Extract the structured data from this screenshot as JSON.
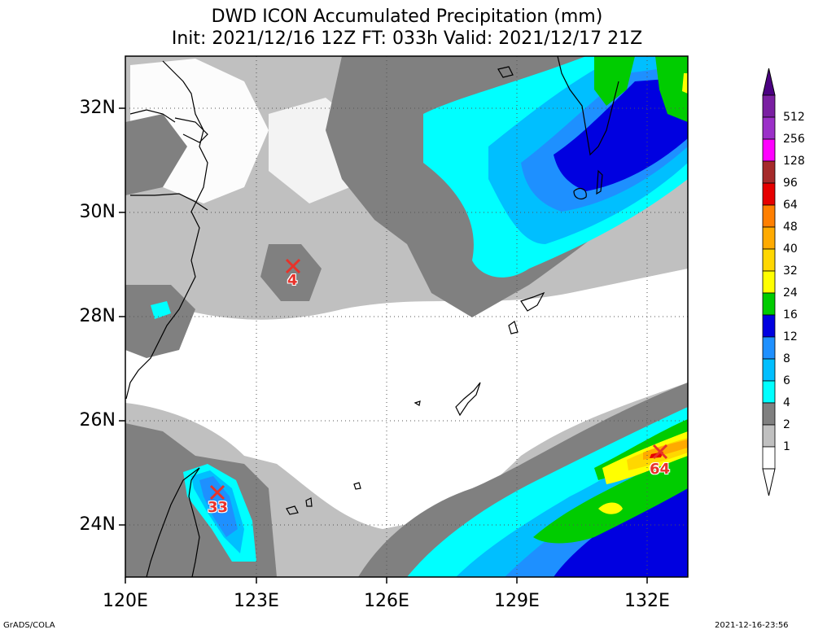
{
  "title": {
    "line1": "DWD ICON Accumulated Precipitation (mm)",
    "line2": "Init: 2021/12/16 12Z  FT: 033h  Valid: 2021/12/17 21Z"
  },
  "axes": {
    "lat_labels": [
      "32N",
      "30N",
      "28N",
      "26N",
      "24N"
    ],
    "lon_labels": [
      "120E",
      "123E",
      "126E",
      "129E",
      "132E"
    ]
  },
  "colorbar": {
    "labels": [
      "512",
      "256",
      "128",
      "96",
      "64",
      "48",
      "40",
      "32",
      "24",
      "16",
      "12",
      "8",
      "6",
      "4",
      "2",
      "1"
    ],
    "colors": [
      "#7a1fa2",
      "#9b30c8",
      "#ff00ff",
      "#a52a2a",
      "#e60000",
      "#ff7f00",
      "#ffaa00",
      "#ffd700",
      "#ffff00",
      "#00cc00",
      "#0000e0",
      "#1e90ff",
      "#00bfff",
      "#00ffff",
      "#808080",
      "#c0c0c0",
      "#ffffff"
    ]
  },
  "markers": [
    {
      "value": "4",
      "lat": 29.0,
      "lon": 124.0
    },
    {
      "value": "33",
      "lat": 24.6,
      "lon": 122.2
    },
    {
      "value": "64",
      "lat": 25.4,
      "lon": 132.4
    }
  ],
  "footer": {
    "left": "GrADS/COLA",
    "right": "2021-12-16-23:56"
  }
}
